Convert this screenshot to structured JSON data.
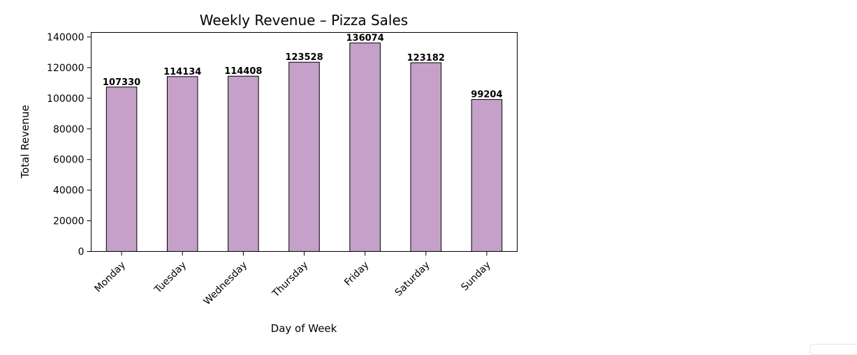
{
  "chart_data": {
    "type": "bar",
    "title": "Weekly Revenue – Pizza Sales",
    "xlabel": "Day of Week",
    "ylabel": "Total Revenue",
    "categories": [
      "Monday",
      "Tuesday",
      "Wednesday",
      "Thursday",
      "Friday",
      "Saturday",
      "Sunday"
    ],
    "values": [
      107330,
      114134,
      114408,
      123528,
      136074,
      123182,
      99204
    ],
    "data_labels": [
      "107330",
      "114134",
      "114408",
      "123528",
      "136074",
      "123182",
      "99204"
    ],
    "ylim": [
      0,
      140000
    ],
    "yticks": [
      0,
      20000,
      40000,
      60000,
      80000,
      100000,
      120000,
      140000
    ],
    "ytick_labels": [
      "0",
      "20000",
      "40000",
      "60000",
      "80000",
      "100000",
      "120000",
      "140000"
    ],
    "grid": false,
    "legend": "none",
    "bar_color": "#c5a0c9",
    "edge_color": "#000000"
  }
}
